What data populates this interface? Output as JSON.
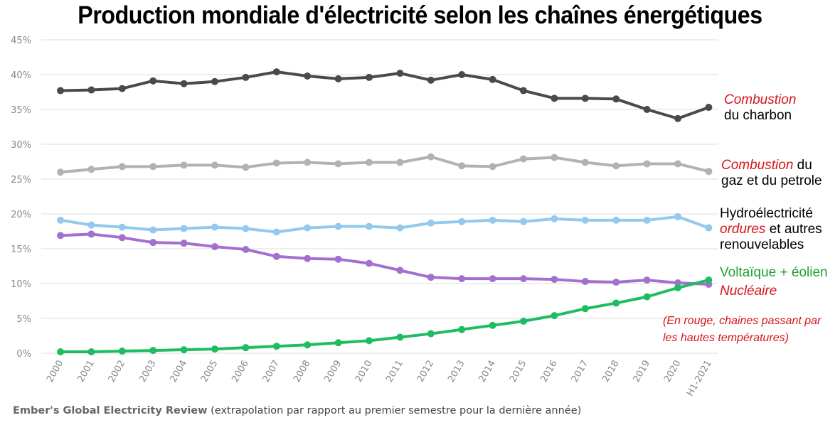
{
  "title": "Production mondiale d'électricité selon les chaînes énergétiques",
  "source": {
    "name": "Ember's Global Electricity Review",
    "note": "(extrapolation par rapport au premier semestre pour la dernière année)"
  },
  "labels": {
    "coal": {
      "line1_red": "Combustion",
      "line2": "du charbon"
    },
    "gas": {
      "line1_red": "Combustion",
      "line1_tail": " du",
      "line2": "gaz et du petrole"
    },
    "hydro": {
      "line1": "Hydroélectricité",
      "line2_red": "ordures",
      "line2_tail": " et autres",
      "line3": "renouvelables"
    },
    "wind": {
      "text": "Voltaïque + éolien"
    },
    "nuclear": {
      "text": "Nucléaire"
    },
    "note": {
      "line1": "(En rouge, chaines passant par",
      "line2": "les hautes températures)"
    }
  },
  "chart_data": {
    "type": "line",
    "title": "Production mondiale d'électricité selon les chaînes énergétiques",
    "categories": [
      "2000",
      "2001",
      "2002",
      "2003",
      "2004",
      "2005",
      "2006",
      "2007",
      "2008",
      "2009",
      "2010",
      "2011",
      "2012",
      "2013",
      "2014",
      "2015",
      "2016",
      "2017",
      "2018",
      "2019",
      "2020",
      "H1-2021"
    ],
    "y_ticks": [
      "0%",
      "5%",
      "10%",
      "15%",
      "20%",
      "25%",
      "30%",
      "35%",
      "40%",
      "45%"
    ],
    "ylim": [
      0,
      45
    ],
    "grid": true,
    "series": [
      {
        "key": "coal",
        "color": "#4a4a4a",
        "values": [
          37.7,
          37.8,
          38.0,
          39.1,
          38.7,
          39.0,
          39.6,
          40.4,
          39.8,
          39.4,
          39.6,
          40.2,
          39.2,
          40.0,
          39.3,
          37.7,
          36.6,
          36.6,
          36.5,
          35.0,
          33.7,
          35.3
        ]
      },
      {
        "key": "gas",
        "color": "#b2b2b2",
        "values": [
          26.0,
          26.4,
          26.8,
          26.8,
          27.0,
          27.0,
          26.7,
          27.3,
          27.4,
          27.2,
          27.4,
          27.4,
          28.2,
          26.9,
          26.8,
          27.9,
          28.1,
          27.4,
          26.9,
          27.2,
          27.2,
          26.1
        ]
      },
      {
        "key": "hydro",
        "color": "#92c9ec",
        "values": [
          19.1,
          18.4,
          18.1,
          17.7,
          17.9,
          18.1,
          17.9,
          17.4,
          18.0,
          18.2,
          18.2,
          18.0,
          18.7,
          18.9,
          19.1,
          18.9,
          19.3,
          19.1,
          19.1,
          19.1,
          19.6,
          18.0
        ]
      },
      {
        "key": "nuclear",
        "color": "#a470cf",
        "values": [
          16.9,
          17.1,
          16.6,
          15.9,
          15.8,
          15.3,
          14.9,
          13.9,
          13.6,
          13.5,
          12.9,
          11.9,
          10.9,
          10.7,
          10.7,
          10.7,
          10.6,
          10.3,
          10.2,
          10.5,
          10.1,
          9.9
        ]
      },
      {
        "key": "wind",
        "color": "#1fbc62",
        "values": [
          0.2,
          0.2,
          0.3,
          0.4,
          0.5,
          0.6,
          0.8,
          1.0,
          1.2,
          1.5,
          1.8,
          2.3,
          2.8,
          3.4,
          4.0,
          4.6,
          5.4,
          6.4,
          7.2,
          8.1,
          9.4,
          10.5
        ]
      }
    ]
  }
}
